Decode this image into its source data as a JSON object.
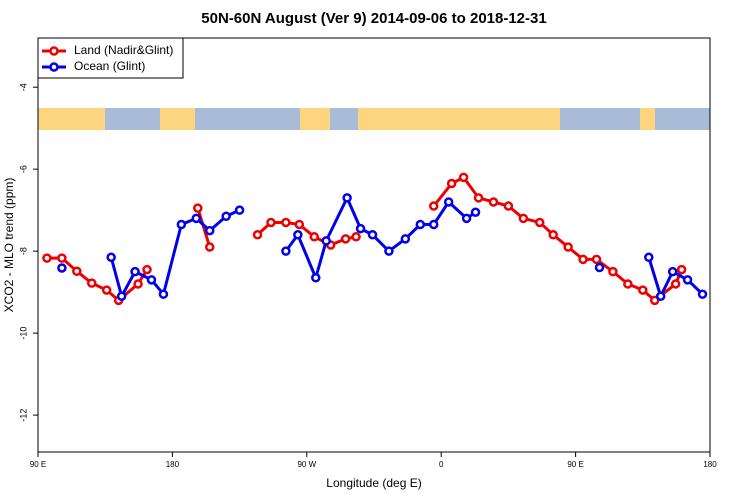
{
  "chart_data": {
    "type": "line",
    "title": "50N-60N August (Ver 9)   2014-09-06 to 2018-12-31",
    "x_label": "Longitude (deg E)",
    "y_label": "XCO2 - MLO trend (ppm)",
    "xlim": [
      90,
      540
    ],
    "ylim": [
      -12.9,
      -2.8
    ],
    "xticks": [
      {
        "value": 90,
        "label": "90 E"
      },
      180,
      {
        "value": 270,
        "label": "90 W"
      },
      {
        "value": 360,
        "label": "0"
      },
      {
        "value": 450,
        "label": "90 E"
      },
      {
        "value": 540,
        "label": "180"
      }
    ],
    "yticks": [
      -4,
      -6,
      -8,
      -10,
      -12
    ],
    "legend": "top-left",
    "series": [
      {
        "name": "Land (Nadir&Glint)",
        "color": "#ee0000",
        "x": [
          96,
          106,
          116,
          126,
          136,
          144,
          157,
          163,
          180,
          197,
          205,
          220,
          237,
          246,
          256,
          265,
          275,
          286,
          296,
          303,
          330,
          355,
          367,
          375,
          385,
          395,
          405,
          415,
          426,
          435,
          445,
          455,
          464,
          475,
          485,
          495,
          503,
          517,
          521
        ],
        "values": [
          -8.17,
          -8.17,
          -8.49,
          -8.78,
          -8.95,
          -9.2,
          -8.8,
          -8.45,
          null,
          -6.95,
          -7.9,
          null,
          -7.6,
          -7.3,
          -7.3,
          -7.35,
          -7.65,
          -7.85,
          -7.7,
          -7.65,
          null,
          -6.9,
          -6.35,
          -6.2,
          -6.7,
          -6.8,
          -6.9,
          -7.2,
          -7.3,
          -7.6,
          -7.9,
          -8.2,
          -8.2,
          -8.5,
          -8.8,
          -8.95,
          -9.2,
          -8.8,
          -8.45
        ]
      },
      {
        "name": "Ocean (Glint)",
        "color": "#0000ee",
        "x": [
          106,
          120,
          139,
          146,
          155,
          166,
          174,
          186,
          196,
          205,
          216,
          225,
          240,
          256,
          264,
          276,
          283,
          297,
          306,
          314,
          325,
          336,
          346,
          355,
          365,
          377,
          383,
          420,
          466,
          480,
          499,
          507,
          515,
          525,
          535
        ],
        "values": [
          -8.41,
          null,
          -8.15,
          -9.1,
          -8.5,
          -8.7,
          -9.05,
          -7.35,
          -7.2,
          -7.5,
          -7.15,
          -7.0,
          null,
          -8.0,
          -7.6,
          -8.65,
          -7.75,
          -6.7,
          -7.45,
          -7.6,
          -8.0,
          -7.7,
          -7.35,
          -7.35,
          -6.8,
          -7.2,
          -7.05,
          null,
          -8.4,
          null,
          -8.15,
          -9.1,
          -8.5,
          -8.7,
          -9.05
        ]
      }
    ]
  }
}
